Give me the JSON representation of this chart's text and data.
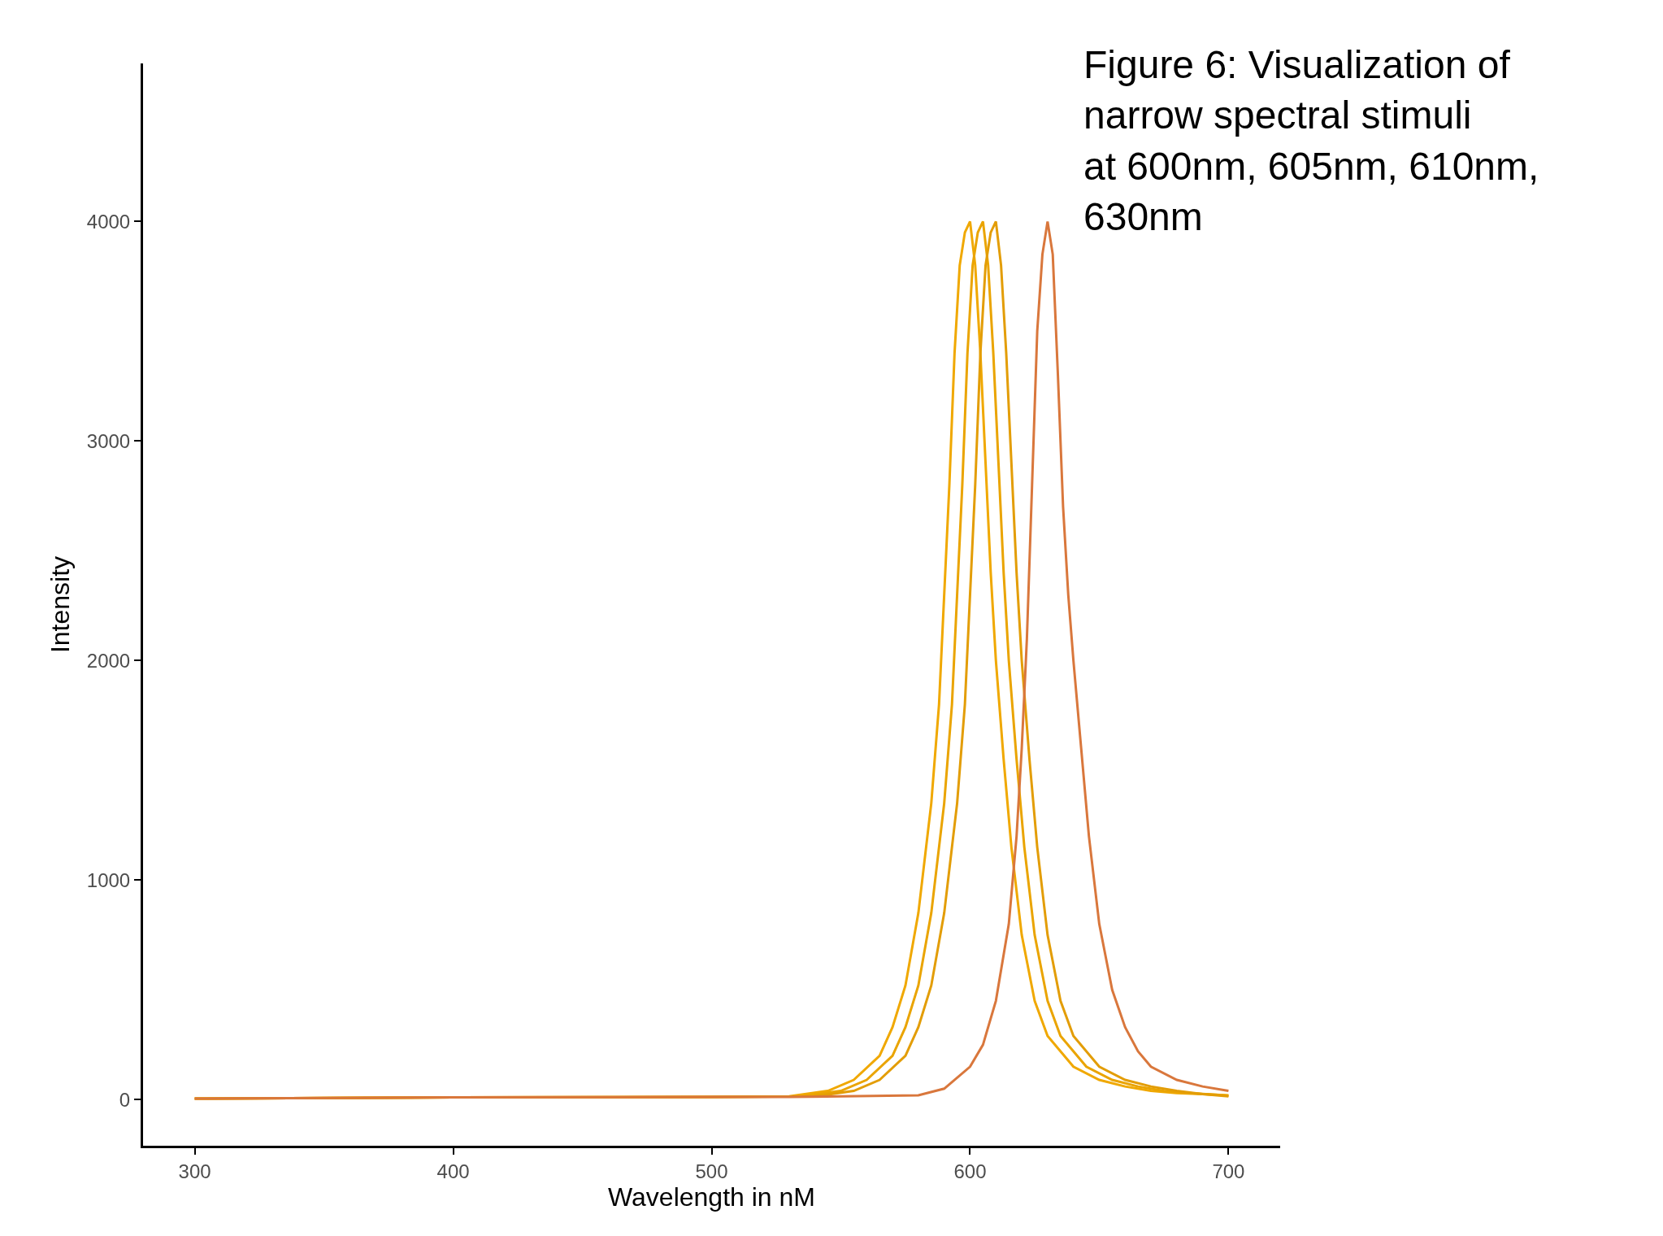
{
  "chart_data": {
    "type": "line",
    "xlabel": "Wavelength in nM",
    "ylabel": "Intensity",
    "annotations": [
      "Figure 6: Visualization of narrow spectral stimuli at 600nm, 605nm, 610nm, 630nm"
    ],
    "xlim": [
      280,
      720
    ],
    "xticks": [
      300,
      400,
      500,
      600,
      700
    ],
    "ylim": [
      -210,
      4720
    ],
    "yticks": [
      0,
      1000,
      2000,
      3000,
      4000
    ],
    "marker": "none",
    "line_style": "solid",
    "series": [
      {
        "color": "#f0a800",
        "x": [
          300,
          400,
          500,
          530,
          545,
          555,
          565,
          570,
          575,
          580,
          585,
          588,
          590,
          592,
          594,
          596,
          598,
          600,
          602,
          604,
          606,
          608,
          610,
          613,
          616,
          620,
          625,
          630,
          640,
          650,
          660,
          670,
          680,
          690,
          700
        ],
        "values": [
          5,
          10,
          12,
          15,
          40,
          90,
          200,
          330,
          520,
          850,
          1350,
          1800,
          2300,
          2800,
          3400,
          3800,
          3950,
          4000,
          3800,
          3400,
          2900,
          2400,
          2000,
          1550,
          1150,
          750,
          450,
          290,
          150,
          90,
          60,
          40,
          30,
          25,
          20
        ]
      },
      {
        "color": "#eaa400",
        "x": [
          300,
          400,
          500,
          535,
          550,
          560,
          570,
          575,
          580,
          585,
          590,
          593,
          595,
          597,
          599,
          601,
          603,
          605,
          607,
          609,
          611,
          613,
          615,
          618,
          621,
          625,
          630,
          635,
          645,
          655,
          665,
          675,
          685,
          695,
          700
        ],
        "values": [
          5,
          10,
          12,
          15,
          40,
          90,
          200,
          330,
          520,
          850,
          1350,
          1800,
          2300,
          2800,
          3400,
          3800,
          3950,
          4000,
          3800,
          3400,
          2900,
          2400,
          2000,
          1550,
          1150,
          750,
          450,
          290,
          150,
          90,
          60,
          40,
          30,
          22,
          18
        ]
      },
      {
        "color": "#e39d06",
        "x": [
          300,
          400,
          500,
          540,
          555,
          565,
          575,
          580,
          585,
          590,
          595,
          598,
          600,
          602,
          604,
          606,
          608,
          610,
          612,
          614,
          616,
          618,
          620,
          623,
          626,
          630,
          635,
          640,
          650,
          660,
          670,
          680,
          690,
          700
        ],
        "values": [
          5,
          10,
          12,
          15,
          40,
          90,
          200,
          330,
          520,
          850,
          1350,
          1800,
          2300,
          2800,
          3400,
          3800,
          3950,
          4000,
          3800,
          3400,
          2900,
          2400,
          2000,
          1550,
          1150,
          750,
          450,
          290,
          150,
          90,
          60,
          40,
          25,
          15
        ]
      },
      {
        "color": "#d9773c",
        "x": [
          300,
          400,
          500,
          530,
          580,
          590,
          600,
          605,
          610,
          615,
          618,
          620,
          622,
          624,
          626,
          628,
          630,
          632,
          634,
          636,
          638,
          640,
          643,
          646,
          650,
          655,
          660,
          665,
          670,
          680,
          690,
          700
        ],
        "values": [
          5,
          10,
          12,
          12,
          20,
          50,
          150,
          250,
          450,
          800,
          1200,
          1600,
          2100,
          2800,
          3500,
          3850,
          4000,
          3850,
          3300,
          2700,
          2300,
          2000,
          1600,
          1200,
          800,
          500,
          330,
          220,
          150,
          90,
          60,
          40
        ]
      }
    ]
  }
}
